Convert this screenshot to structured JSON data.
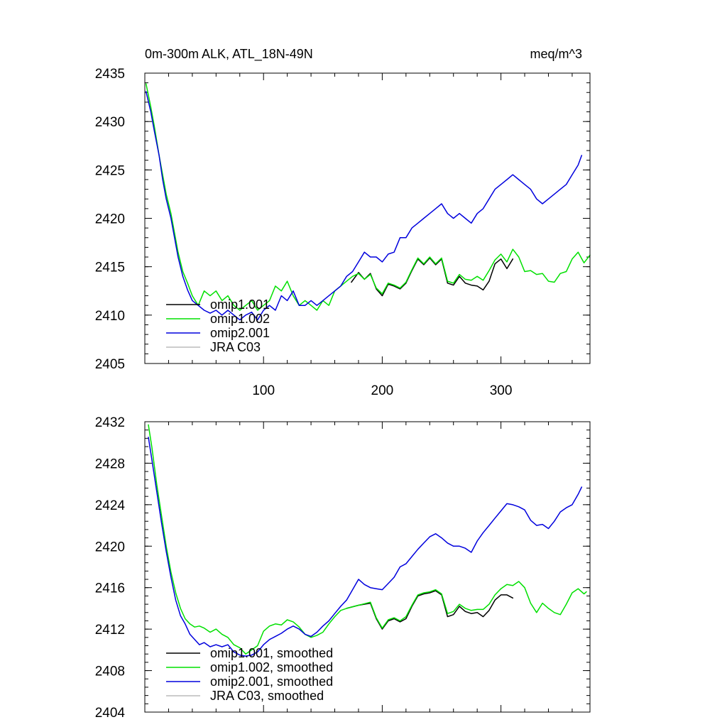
{
  "chart_data": [
    {
      "type": "line",
      "title": "0m-300m ALK, ATL_18N-49N",
      "units": "meq/m^3",
      "xlim": [
        0,
        375
      ],
      "ylim": [
        2405,
        2435
      ],
      "x_ticks": [
        100,
        200,
        300
      ],
      "x_tick_labels": [
        "100",
        "200",
        "300"
      ],
      "y_ticks": [
        2405,
        2410,
        2415,
        2420,
        2425,
        2430,
        2435
      ],
      "y_tick_labels": [
        "2405",
        "2410",
        "2415",
        "2420",
        "2425",
        "2430",
        "2435"
      ],
      "legend": {
        "placement": "lower-left",
        "entries": [
          {
            "label": "omip1.001",
            "color": "#000000"
          },
          {
            "label": "omip1.002",
            "color": "#00e000"
          },
          {
            "label": "omip2.001",
            "color": "#0000dd"
          },
          {
            "label": "JRA C03",
            "color": "#bbbbbb"
          }
        ]
      },
      "series": [
        {
          "name": "omip1.001",
          "color": "#000000",
          "x": [
            174,
            180,
            185,
            190,
            195,
            200,
            205,
            210,
            215,
            220,
            225,
            230,
            235,
            240,
            245,
            250,
            255,
            260,
            265,
            270,
            275,
            280,
            285,
            290,
            295,
            300,
            305,
            310
          ],
          "y": [
            2413.4,
            2414.4,
            2413.7,
            2414.3,
            2412.7,
            2412.0,
            2413.2,
            2413.0,
            2412.7,
            2413.3,
            2414.6,
            2415.8,
            2415.2,
            2415.9,
            2415.2,
            2415.8,
            2413.3,
            2413.1,
            2414.0,
            2413.3,
            2413.1,
            2413.0,
            2412.6,
            2413.5,
            2415.3,
            2415.8,
            2414.8,
            2415.8
          ]
        },
        {
          "name": "omip1.002",
          "color": "#00e000",
          "x": [
            1,
            5,
            8,
            12,
            15,
            18,
            22,
            25,
            28,
            32,
            36,
            40,
            45,
            50,
            55,
            60,
            65,
            70,
            75,
            80,
            85,
            90,
            95,
            100,
            105,
            110,
            115,
            120,
            125,
            130,
            135,
            140,
            145,
            150,
            155,
            160,
            165,
            170,
            175,
            180,
            185,
            190,
            195,
            200,
            205,
            210,
            215,
            220,
            225,
            230,
            235,
            240,
            245,
            250,
            255,
            260,
            265,
            270,
            275,
            280,
            285,
            290,
            295,
            300,
            305,
            310,
            315,
            320,
            325,
            330,
            335,
            340,
            345,
            350,
            355,
            360,
            365,
            370,
            375
          ],
          "y": [
            2433.9,
            2431.5,
            2429.5,
            2426.5,
            2424.5,
            2422.5,
            2420.5,
            2418.5,
            2416.5,
            2414.5,
            2413.3,
            2412.0,
            2411.0,
            2412.5,
            2412.0,
            2412.5,
            2411.5,
            2412.0,
            2411.0,
            2410.5,
            2411.0,
            2411.5,
            2410.5,
            2411.0,
            2411.5,
            2413.0,
            2412.5,
            2413.5,
            2412.0,
            2411.0,
            2411.5,
            2411.0,
            2410.5,
            2411.5,
            2411.0,
            2412.5,
            2413.0,
            2413.5,
            2414.0,
            2414.3,
            2413.7,
            2414.2,
            2412.8,
            2412.2,
            2413.3,
            2413.1,
            2412.8,
            2413.4,
            2414.7,
            2415.9,
            2415.3,
            2416.0,
            2415.3,
            2415.9,
            2413.5,
            2413.3,
            2414.2,
            2413.7,
            2413.6,
            2414.0,
            2413.6,
            2414.6,
            2415.7,
            2416.3,
            2415.5,
            2416.8,
            2416.0,
            2414.5,
            2414.6,
            2414.2,
            2414.3,
            2413.5,
            2413.4,
            2414.3,
            2414.5,
            2415.8,
            2416.5,
            2415.4,
            2416.2
          ]
        },
        {
          "name": "omip2.001",
          "color": "#0000dd",
          "x": [
            1,
            5,
            8,
            12,
            15,
            18,
            22,
            25,
            28,
            32,
            36,
            40,
            45,
            50,
            55,
            60,
            65,
            70,
            75,
            80,
            85,
            90,
            95,
            100,
            105,
            110,
            115,
            120,
            125,
            130,
            135,
            140,
            145,
            150,
            155,
            160,
            165,
            170,
            175,
            180,
            185,
            190,
            195,
            200,
            205,
            210,
            215,
            220,
            225,
            230,
            235,
            240,
            245,
            250,
            255,
            260,
            265,
            270,
            275,
            280,
            285,
            290,
            295,
            300,
            305,
            310,
            315,
            320,
            325,
            330,
            335,
            340,
            345,
            350,
            355,
            360,
            365,
            368
          ],
          "y": [
            2433.1,
            2431.0,
            2429.0,
            2426.5,
            2424.0,
            2422.0,
            2420.0,
            2418.0,
            2416.0,
            2414.0,
            2412.6,
            2411.5,
            2411.0,
            2410.5,
            2410.2,
            2410.5,
            2410.0,
            2410.5,
            2410.0,
            2409.5,
            2410.0,
            2410.3,
            2409.5,
            2410.5,
            2411.0,
            2410.5,
            2412.0,
            2411.5,
            2412.5,
            2411.0,
            2411.0,
            2411.5,
            2411.0,
            2411.5,
            2412.0,
            2412.5,
            2413.0,
            2414.0,
            2414.5,
            2415.5,
            2416.5,
            2416.0,
            2416.0,
            2415.5,
            2416.3,
            2416.5,
            2418.0,
            2418.0,
            2419.0,
            2419.5,
            2420.0,
            2420.5,
            2421.0,
            2421.5,
            2420.5,
            2420.0,
            2420.5,
            2420.0,
            2419.5,
            2420.5,
            2421.0,
            2422.0,
            2423.0,
            2423.5,
            2424.0,
            2424.5,
            2424.0,
            2423.5,
            2423.0,
            2422.0,
            2421.5,
            2422.0,
            2422.5,
            2423.0,
            2423.5,
            2424.5,
            2425.5,
            2426.5
          ]
        },
        {
          "name": "JRA C03",
          "color": "#bbbbbb",
          "x": [],
          "y": []
        }
      ]
    },
    {
      "type": "line",
      "xlim": [
        0,
        375
      ],
      "ylim": [
        2404,
        2432
      ],
      "x_ticks": [
        100,
        200,
        300
      ],
      "x_tick_labels": [],
      "y_ticks": [
        2404,
        2408,
        2412,
        2416,
        2420,
        2424,
        2428,
        2432
      ],
      "y_tick_labels": [
        "2404",
        "2408",
        "2412",
        "2416",
        "2420",
        "2424",
        "2428",
        "2432"
      ],
      "legend": {
        "placement": "lower-left",
        "entries": [
          {
            "label": "omip1.001, smoothed",
            "color": "#000000"
          },
          {
            "label": "omip1.002, smoothed",
            "color": "#00e000"
          },
          {
            "label": "omip2.001, smoothed",
            "color": "#0000dd"
          },
          {
            "label": "JRA C03, smoothed",
            "color": "#bbbbbb"
          }
        ]
      },
      "series": [
        {
          "name": "omip1.001, smoothed",
          "color": "#000000",
          "x": [
            170,
            180,
            190,
            195,
            200,
            205,
            210,
            215,
            220,
            225,
            230,
            235,
            240,
            245,
            250,
            255,
            260,
            265,
            270,
            275,
            280,
            285,
            290,
            295,
            300,
            305,
            310
          ],
          "y": [
            2414.0,
            2414.3,
            2414.5,
            2413.0,
            2412.0,
            2412.8,
            2413.0,
            2412.7,
            2413.0,
            2414.2,
            2415.2,
            2415.4,
            2415.5,
            2415.7,
            2415.3,
            2413.2,
            2413.4,
            2414.2,
            2413.7,
            2413.5,
            2413.6,
            2413.2,
            2413.8,
            2414.8,
            2415.3,
            2415.3,
            2415.0
          ]
        },
        {
          "name": "omip1.002, smoothed",
          "color": "#00e000",
          "x": [
            3,
            6,
            10,
            14,
            18,
            22,
            26,
            30,
            34,
            38,
            42,
            46,
            50,
            55,
            60,
            65,
            70,
            75,
            80,
            85,
            90,
            95,
            100,
            105,
            110,
            115,
            120,
            125,
            130,
            135,
            140,
            145,
            150,
            155,
            160,
            165,
            170,
            180,
            190,
            195,
            200,
            205,
            210,
            215,
            220,
            225,
            230,
            235,
            240,
            245,
            250,
            255,
            260,
            265,
            270,
            275,
            280,
            285,
            290,
            295,
            300,
            305,
            310,
            315,
            320,
            325,
            330,
            335,
            340,
            345,
            350,
            355,
            360,
            365,
            370,
            372
          ],
          "y": [
            2431.7,
            2429.5,
            2426.0,
            2423.0,
            2420.0,
            2417.5,
            2415.5,
            2414.0,
            2413.0,
            2412.5,
            2412.2,
            2412.3,
            2412.1,
            2411.7,
            2412.0,
            2411.5,
            2411.2,
            2410.5,
            2410.2,
            2409.6,
            2410.0,
            2410.4,
            2411.8,
            2412.3,
            2412.5,
            2412.4,
            2412.9,
            2412.7,
            2412.2,
            2411.5,
            2411.2,
            2411.4,
            2411.7,
            2412.5,
            2413.2,
            2413.8,
            2414.0,
            2414.3,
            2414.6,
            2413.1,
            2412.1,
            2412.9,
            2413.1,
            2412.8,
            2413.2,
            2414.3,
            2415.3,
            2415.5,
            2415.6,
            2415.8,
            2415.4,
            2413.5,
            2413.7,
            2414.4,
            2414.0,
            2413.8,
            2413.9,
            2413.9,
            2414.4,
            2415.3,
            2415.9,
            2416.3,
            2416.2,
            2416.6,
            2416.0,
            2414.5,
            2413.6,
            2414.5,
            2414.0,
            2413.6,
            2413.4,
            2414.4,
            2415.5,
            2415.9,
            2415.4,
            2415.6
          ]
        },
        {
          "name": "omip2.001, smoothed",
          "color": "#0000dd",
          "x": [
            3,
            6,
            10,
            14,
            18,
            22,
            26,
            30,
            34,
            38,
            42,
            46,
            50,
            55,
            60,
            65,
            70,
            75,
            80,
            85,
            90,
            95,
            100,
            105,
            110,
            115,
            120,
            125,
            130,
            135,
            140,
            145,
            150,
            155,
            160,
            165,
            170,
            175,
            180,
            185,
            190,
            195,
            200,
            205,
            210,
            215,
            220,
            225,
            230,
            235,
            240,
            245,
            250,
            255,
            260,
            265,
            270,
            275,
            280,
            285,
            290,
            295,
            300,
            305,
            310,
            315,
            320,
            325,
            330,
            335,
            340,
            345,
            350,
            355,
            360,
            365,
            368
          ],
          "y": [
            2430.5,
            2428.3,
            2425.3,
            2422.3,
            2419.5,
            2417.0,
            2414.8,
            2413.3,
            2412.5,
            2411.5,
            2411.0,
            2410.5,
            2410.7,
            2410.3,
            2410.5,
            2410.3,
            2410.5,
            2409.8,
            2409.5,
            2409.4,
            2409.5,
            2409.8,
            2410.5,
            2411.0,
            2411.3,
            2411.6,
            2412.0,
            2412.3,
            2412.0,
            2411.5,
            2411.3,
            2411.7,
            2412.3,
            2412.8,
            2413.5,
            2414.2,
            2414.8,
            2415.8,
            2416.8,
            2416.3,
            2416.0,
            2415.9,
            2415.8,
            2416.4,
            2417.0,
            2418.0,
            2418.3,
            2419.0,
            2419.7,
            2420.3,
            2420.9,
            2421.2,
            2420.8,
            2420.3,
            2420.0,
            2420.0,
            2419.8,
            2419.4,
            2420.5,
            2421.3,
            2422.0,
            2422.7,
            2423.4,
            2424.1,
            2424.0,
            2423.8,
            2423.5,
            2422.5,
            2422.0,
            2422.1,
            2421.7,
            2422.4,
            2423.3,
            2423.7,
            2424.0,
            2425.0,
            2425.7
          ]
        },
        {
          "name": "JRA C03, smoothed",
          "color": "#bbbbbb",
          "x": [],
          "y": []
        }
      ]
    }
  ]
}
